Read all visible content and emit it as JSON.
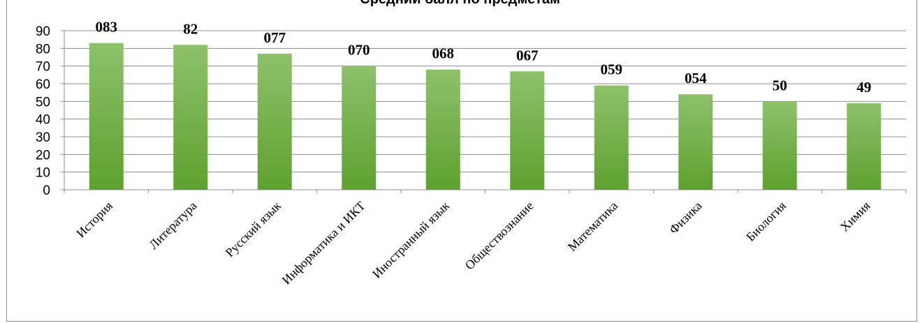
{
  "chart_data": {
    "type": "bar",
    "title": "Средний балл по предметам",
    "categories": [
      "История",
      "Литература",
      "Русский язык",
      "Информатика и ИКТ",
      "Иностранный язык",
      "Обществознание",
      "Математика",
      "Физика",
      "Биология",
      "Химия"
    ],
    "values": [
      83,
      82,
      77,
      70,
      68,
      67,
      59,
      54,
      50,
      49
    ],
    "data_labels": [
      "083",
      "82",
      "077",
      "070",
      "068",
      "067",
      "059",
      "054",
      "50",
      "49"
    ],
    "ylim": [
      0,
      90
    ],
    "yticks": [
      0,
      10,
      20,
      30,
      40,
      50,
      60,
      70,
      80,
      90
    ],
    "grid": true,
    "legend": "none",
    "colors": {
      "bar_top": "#8dc16b",
      "bar_bottom": "#5ea12f",
      "grid": "#8c8c8c",
      "axis": "#8c8c8c"
    }
  }
}
